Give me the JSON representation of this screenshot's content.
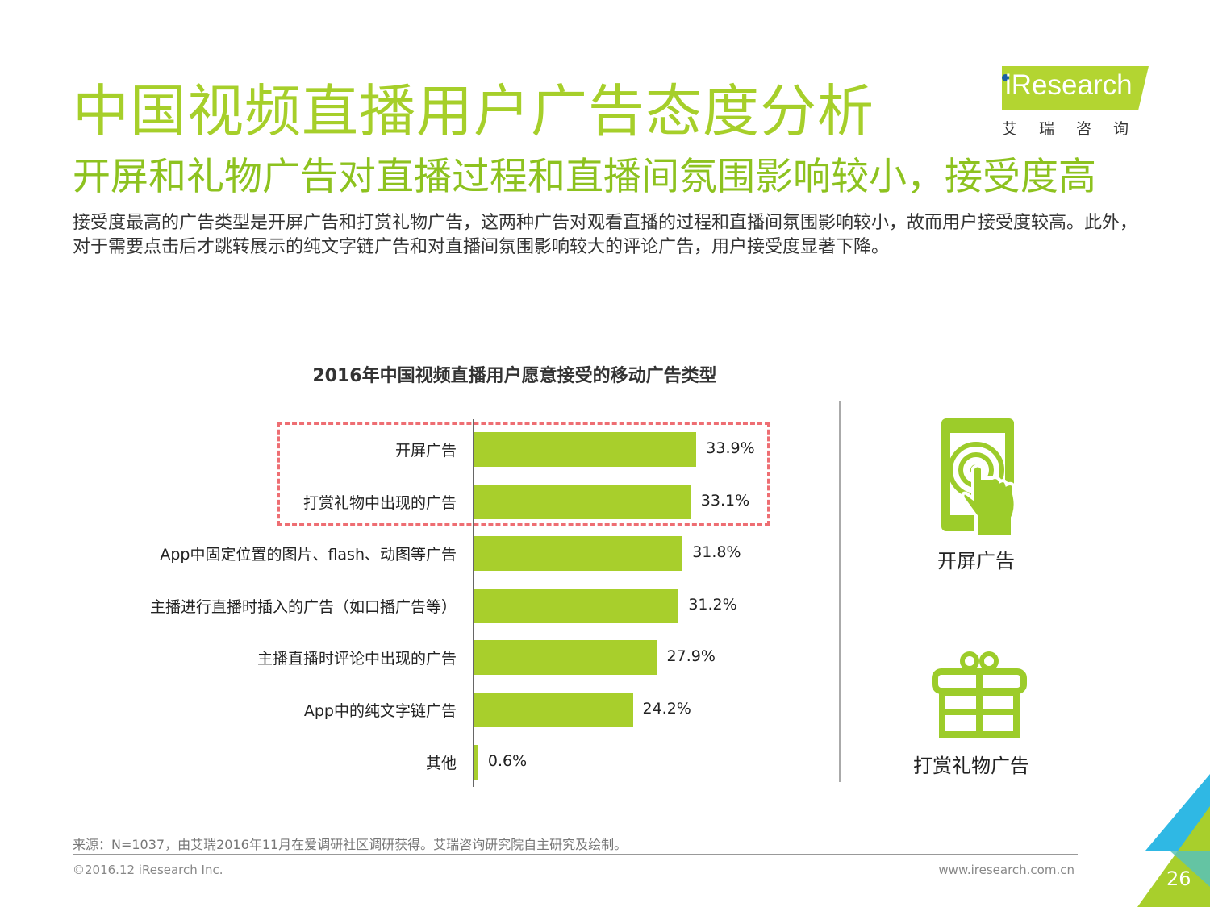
{
  "header": {
    "title": "中国视频直播用户广告态度分析",
    "subtitle": "开屏和礼物广告对直播过程和直播间氛围影响较小，接受度高",
    "intro": "接受度最高的广告类型是开屏广告和打赏礼物广告，这两种广告对观看直播的过程和直播间氛围影响较小，故而用户接受度较高。此外，对于需要点击后才跳转展示的纯文字链广告和对直播间氛围影响较大的评论广告，用户接受度显著下降。"
  },
  "logo": {
    "text": "iResearch",
    "cn": "艾瑞咨询",
    "brand_color": "#b3d531",
    "dot_color": "#1b5fa6"
  },
  "chart_data": {
    "type": "bar",
    "orientation": "horizontal",
    "title": "2016年中国视频直播用户愿意接受的移动广告类型",
    "categories": [
      "开屏广告",
      "打赏礼物中出现的广告",
      "App中固定位置的图片、flash、动图等广告",
      "主播进行直播时插入的广告（如口播广告等）",
      "主播直播时评论中出现的广告",
      "App中的纯文字链广告",
      "其他"
    ],
    "values": [
      33.9,
      33.1,
      31.8,
      31.2,
      27.9,
      24.2,
      0.6
    ],
    "value_labels": [
      "33.9%",
      "33.1%",
      "31.8%",
      "31.2%",
      "27.9%",
      "24.2%",
      "0.6%"
    ],
    "unit": "%",
    "xlim": [
      0,
      42
    ],
    "bar_color": "#a8cf2c",
    "highlighted_categories": [
      "开屏广告",
      "打赏礼物中出现的广告"
    ],
    "highlight_color": "#ee6e73",
    "grid": false,
    "legend": "none"
  },
  "side": {
    "items": [
      {
        "label": "开屏广告",
        "icon": "phone-tap-icon"
      },
      {
        "label": "打赏礼物广告",
        "icon": "gift-box-icon"
      }
    ],
    "icon_color": "#9ccc2a"
  },
  "footer": {
    "source": "来源：N=1037，由艾瑞2016年11月在爱调研社区调研获得。艾瑞咨询研究院自主研究及绘制。",
    "copyright": "©2016.12 iResearch Inc.",
    "url": "www.iresearch.com.cn",
    "page_number": "26"
  }
}
